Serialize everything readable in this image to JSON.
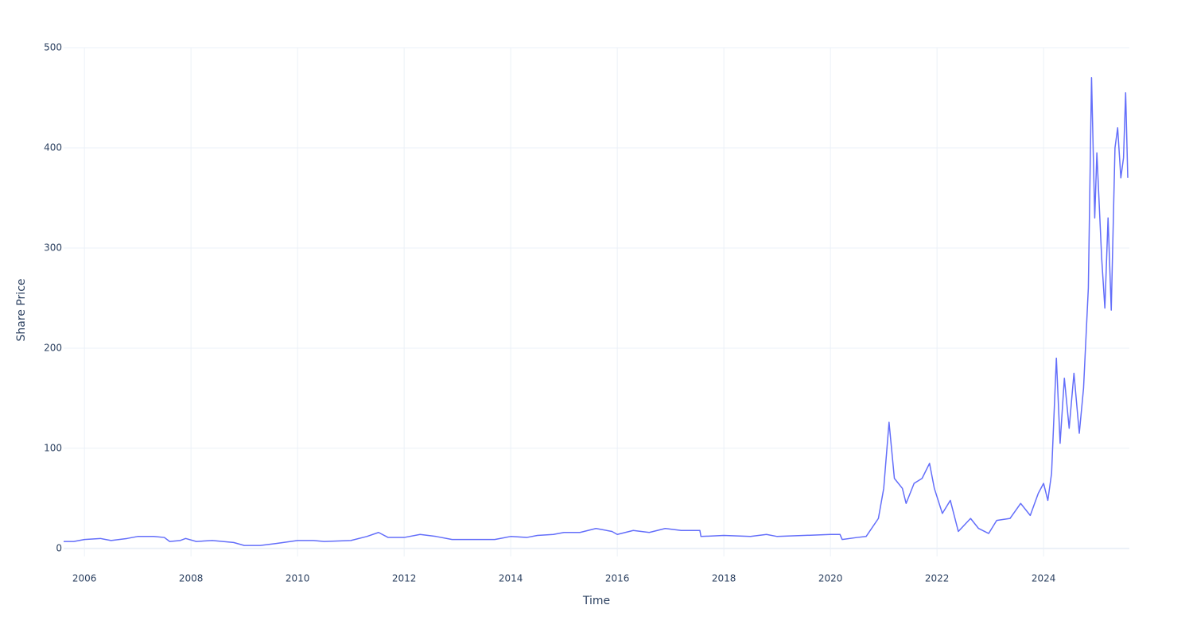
{
  "chart_data": {
    "type": "line",
    "x_label": "Time",
    "y_label": "Share Price",
    "color": "#636efa",
    "grid": true,
    "x": [
      2005.61,
      2005.8,
      2006.0,
      2006.3,
      2006.5,
      2006.8,
      2007.0,
      2007.3,
      2007.5,
      2007.6,
      2007.8,
      2007.9,
      2008.1,
      2008.4,
      2008.8,
      2009.0,
      2009.3,
      2009.6,
      2010.0,
      2010.3,
      2010.5,
      2011.0,
      2011.3,
      2011.52,
      2011.7,
      2012.0,
      2012.3,
      2012.6,
      2012.9,
      2013.3,
      2013.7,
      2014.0,
      2014.3,
      2014.5,
      2014.8,
      2015.0,
      2015.3,
      2015.6,
      2015.9,
      2016.0,
      2016.3,
      2016.6,
      2016.9,
      2017.2,
      2017.55,
      2017.57,
      2018.0,
      2018.5,
      2018.8,
      2019.0,
      2019.5,
      2020.0,
      2020.18,
      2020.22,
      2020.5,
      2020.67,
      2020.9,
      2021.0,
      2021.1,
      2021.2,
      2021.35,
      2021.42,
      2021.57,
      2021.72,
      2021.86,
      2021.95,
      2022.1,
      2022.25,
      2022.4,
      2022.63,
      2022.78,
      2022.97,
      2023.12,
      2023.37,
      2023.57,
      2023.75,
      2023.9,
      2024.0,
      2024.08,
      2024.15,
      2024.24,
      2024.31,
      2024.39,
      2024.48,
      2024.57,
      2024.67,
      2024.75,
      2024.84,
      2024.9,
      2024.96,
      2025.0,
      2025.09,
      2025.15,
      2025.21,
      2025.27,
      2025.34,
      2025.39,
      2025.45,
      2025.5,
      2025.54,
      2025.58
    ],
    "values": [
      7,
      7,
      9,
      10,
      8,
      10,
      12,
      12,
      11,
      7,
      8,
      10,
      7,
      8,
      6,
      3,
      3,
      5,
      8,
      8,
      7,
      8,
      12,
      16,
      11,
      11,
      14,
      12,
      9,
      9,
      9,
      12,
      11,
      13,
      14,
      16,
      16,
      20,
      17,
      14,
      18,
      16,
      20,
      18,
      18,
      12,
      13,
      12,
      14,
      12,
      13,
      14,
      14,
      9,
      11,
      12,
      30,
      60,
      126,
      70,
      60,
      45,
      65,
      70,
      85,
      60,
      35,
      48,
      17,
      30,
      20,
      15,
      28,
      30,
      45,
      33,
      55,
      65,
      48,
      75,
      190,
      105,
      170,
      120,
      175,
      115,
      160,
      260,
      470,
      330,
      395,
      290,
      240,
      330,
      238,
      400,
      420,
      370,
      390,
      455,
      370
    ],
    "xlim": [
      2005.61,
      2025.61
    ],
    "xticks": [
      2006,
      2008,
      2010,
      2012,
      2014,
      2016,
      2018,
      2020,
      2022,
      2024
    ],
    "ylim": [
      -8,
      500
    ],
    "yticks": [
      0,
      100,
      200,
      300,
      400,
      500
    ]
  }
}
